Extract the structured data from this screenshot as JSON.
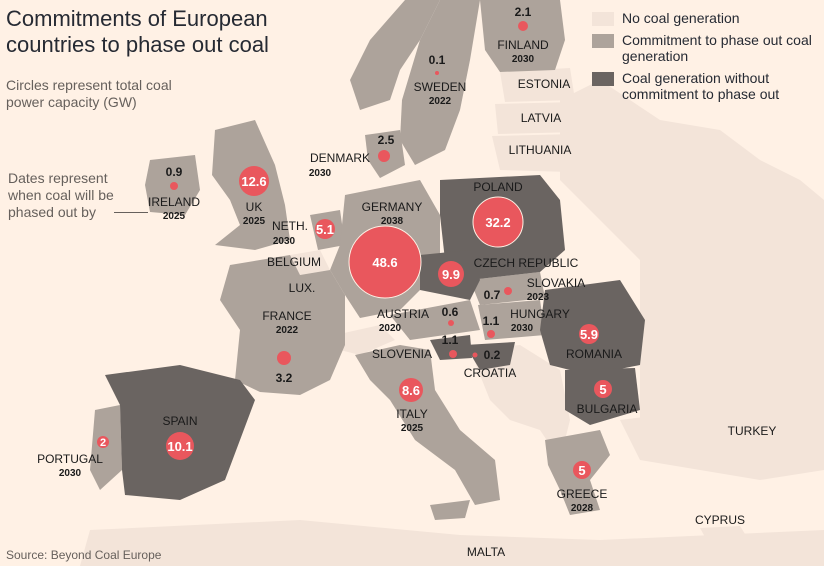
{
  "title": "Commitments of European countries to phase out coal",
  "subtitle": "Circles represent total coal power capacity (GW)",
  "dates_note": "Dates represent when coal will be phased out by",
  "source": "Source: Beyond Coal Europe",
  "colors": {
    "background": "#fff1e5",
    "no_coal": "#f3e4d9",
    "commitment": "#ada39b",
    "no_commitment": "#6a6461",
    "circle": "#e9575d",
    "sea": "#fff1e5"
  },
  "legend": [
    {
      "key": "no_coal",
      "label": "No coal generation"
    },
    {
      "key": "commitment",
      "label": "Commitment to phase out coal generation"
    },
    {
      "key": "no_commitment",
      "label": "Coal generation without commitment to phase out"
    }
  ],
  "countries": {
    "ireland": {
      "name": "IRELAND",
      "year": "2025",
      "capacity": "0.9"
    },
    "uk": {
      "name": "UK",
      "year": "2025",
      "capacity": "12.6"
    },
    "denmark": {
      "name": "DENMARK",
      "year": "2030",
      "capacity": "2.5"
    },
    "sweden": {
      "name": "SWEDEN",
      "year": "2022",
      "capacity": "0.1"
    },
    "finland": {
      "name": "FINLAND",
      "year": "2030",
      "capacity": "2.1"
    },
    "estonia": {
      "name": "ESTONIA"
    },
    "latvia": {
      "name": "LATVIA"
    },
    "lithuania": {
      "name": "LITHUANIA"
    },
    "netherlands": {
      "name": "NETH.",
      "year": "2030",
      "capacity": "5.1"
    },
    "belgium": {
      "name": "BELGIUM"
    },
    "luxembourg": {
      "name": "LUX."
    },
    "germany": {
      "name": "GERMANY",
      "year": "2038",
      "capacity": "48.6"
    },
    "poland": {
      "name": "POLAND",
      "capacity": "32.2"
    },
    "czech": {
      "name": "CZECH REPUBLIC",
      "capacity": "9.9"
    },
    "slovakia": {
      "name": "SLOVAKIA",
      "year": "2023",
      "capacity": "0.7"
    },
    "france": {
      "name": "FRANCE",
      "year": "2022",
      "capacity": "3.2"
    },
    "austria": {
      "name": "AUSTRIA",
      "year": "2020",
      "capacity": "0.6"
    },
    "hungary": {
      "name": "HUNGARY",
      "year": "2030",
      "capacity": "1.1"
    },
    "slovenia": {
      "name": "SLOVENIA",
      "capacity": "1.1"
    },
    "croatia": {
      "name": "CROATIA",
      "capacity": "0.2"
    },
    "romania": {
      "name": "ROMANIA",
      "capacity": "5.9"
    },
    "bulgaria": {
      "name": "BULGARIA",
      "capacity": "5"
    },
    "italy": {
      "name": "ITALY",
      "year": "2025",
      "capacity": "8.6"
    },
    "spain": {
      "name": "SPAIN",
      "capacity": "10.1"
    },
    "portugal": {
      "name": "PORTUGAL",
      "year": "2030",
      "capacity": "2"
    },
    "greece": {
      "name": "GREECE",
      "year": "2028",
      "capacity": "5"
    },
    "turkey": {
      "name": "TURKEY"
    },
    "cyprus": {
      "name": "CYPRUS"
    },
    "malta": {
      "name": "MALTA"
    }
  }
}
